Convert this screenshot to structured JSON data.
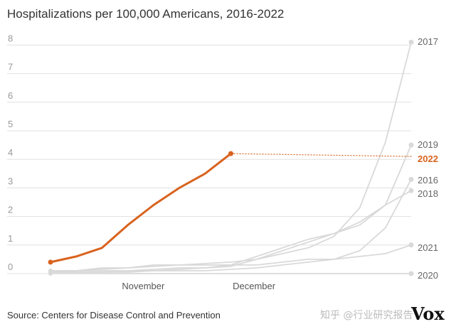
{
  "page": {
    "title": "Hospitalizations per 100,000 Americans, 2016-2022",
    "source": "Source: Centers for Disease Control and Prevention",
    "watermark": "知乎 @行业研究报告",
    "logo": "Vox"
  },
  "chart_data": {
    "type": "line",
    "title": "Hospitalizations per 100,000 Americans, 2016-2022",
    "xlabel": "",
    "ylabel": "",
    "x_tick_labels": [
      "November",
      "December"
    ],
    "ylim": [
      0,
      8
    ],
    "yticks": [
      0,
      1,
      2,
      3,
      4,
      5,
      6,
      7,
      8
    ],
    "grid": true,
    "legend": "direct labels at right end of lines",
    "colors": {
      "highlight": "#d9621e",
      "other": "#d9d9d9",
      "grid": "#e0e0e0"
    },
    "series": [
      {
        "name": "2017",
        "values": [
          0.1,
          0.1,
          0.15,
          0.2,
          0.25,
          0.3,
          0.35,
          0.4,
          0.5,
          0.7,
          0.9,
          1.3,
          2.3,
          4.6,
          8.1
        ]
      },
      {
        "name": "2019",
        "values": [
          0.05,
          0.1,
          0.1,
          0.1,
          0.15,
          0.2,
          0.2,
          0.25,
          0.5,
          0.8,
          1.1,
          1.4,
          1.7,
          2.4,
          4.5
        ]
      },
      {
        "name": "2016",
        "values": [
          0.05,
          0.05,
          0.05,
          0.05,
          0.1,
          0.1,
          0.1,
          0.15,
          0.2,
          0.3,
          0.4,
          0.5,
          0.8,
          1.6,
          3.3
        ]
      },
      {
        "name": "2018",
        "values": [
          0.05,
          0.05,
          0.05,
          0.1,
          0.1,
          0.15,
          0.2,
          0.3,
          0.6,
          0.9,
          1.2,
          1.4,
          1.8,
          2.4,
          2.9
        ]
      },
      {
        "name": "2021",
        "values": [
          0.1,
          0.1,
          0.2,
          0.2,
          0.3,
          0.3,
          0.3,
          0.3,
          0.3,
          0.4,
          0.5,
          0.5,
          0.6,
          0.7,
          1.0
        ]
      },
      {
        "name": "2020",
        "values": [
          0,
          0,
          0,
          0,
          0,
          0,
          0,
          0,
          0,
          0,
          0,
          0,
          0,
          0,
          0
        ]
      },
      {
        "name": "2022",
        "highlight": true,
        "values": [
          0.4,
          0.6,
          0.9,
          1.7,
          2.4,
          3.0,
          3.5,
          4.2
        ],
        "projection": 4.1
      }
    ]
  }
}
